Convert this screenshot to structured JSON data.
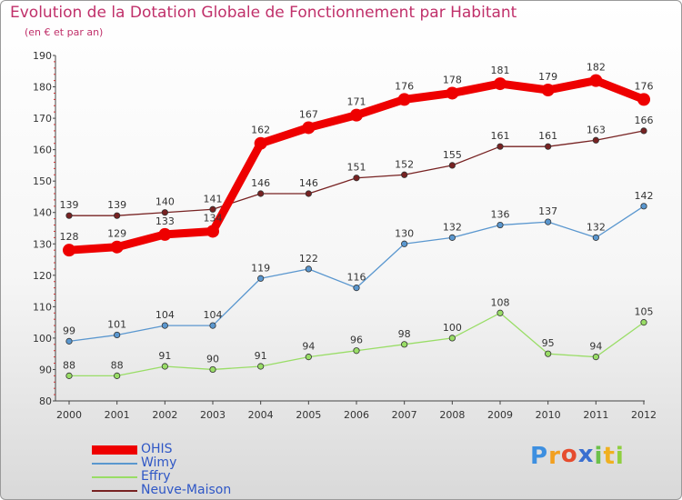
{
  "header": {
    "title": "Evolution de la Dotation Globale de Fonctionnement par Habitant",
    "subtitle": "(en € et par an)"
  },
  "chart_data": {
    "type": "line",
    "x": [
      "2000",
      "2001",
      "2002",
      "2003",
      "2004",
      "2005",
      "2006",
      "2007",
      "2008",
      "2009",
      "2010",
      "2011",
      "2012"
    ],
    "ylim": [
      80,
      190
    ],
    "yticks": [
      80,
      90,
      100,
      110,
      120,
      130,
      140,
      150,
      160,
      170,
      180,
      190
    ],
    "grid": false,
    "legend_position": "bottom-left",
    "series": [
      {
        "name": "OHIS",
        "color": "#ee0000",
        "values": [
          128,
          129,
          133,
          134,
          162,
          167,
          171,
          176,
          178,
          181,
          179,
          182,
          176
        ]
      },
      {
        "name": "Wimy",
        "color": "#5a97cf",
        "values": [
          99,
          101,
          104,
          104,
          119,
          122,
          116,
          130,
          132,
          136,
          137,
          132,
          142
        ]
      },
      {
        "name": "Effry",
        "color": "#99dd66",
        "values": [
          88,
          88,
          91,
          90,
          91,
          94,
          96,
          98,
          100,
          108,
          95,
          94,
          105
        ]
      },
      {
        "name": "Neuve-Maison",
        "color": "#772222",
        "values": [
          139,
          139,
          140,
          141,
          146,
          146,
          151,
          152,
          155,
          161,
          161,
          163,
          166
        ]
      }
    ]
  },
  "logo": {
    "letters": [
      "P",
      "r",
      "o",
      "x",
      "i",
      "t",
      "i"
    ],
    "colors": [
      "#3d8fe0",
      "#f2a020",
      "#e64c2e",
      "#3a6fd0",
      "#6cc04a",
      "#f0b020",
      "#8fcf3f"
    ]
  }
}
